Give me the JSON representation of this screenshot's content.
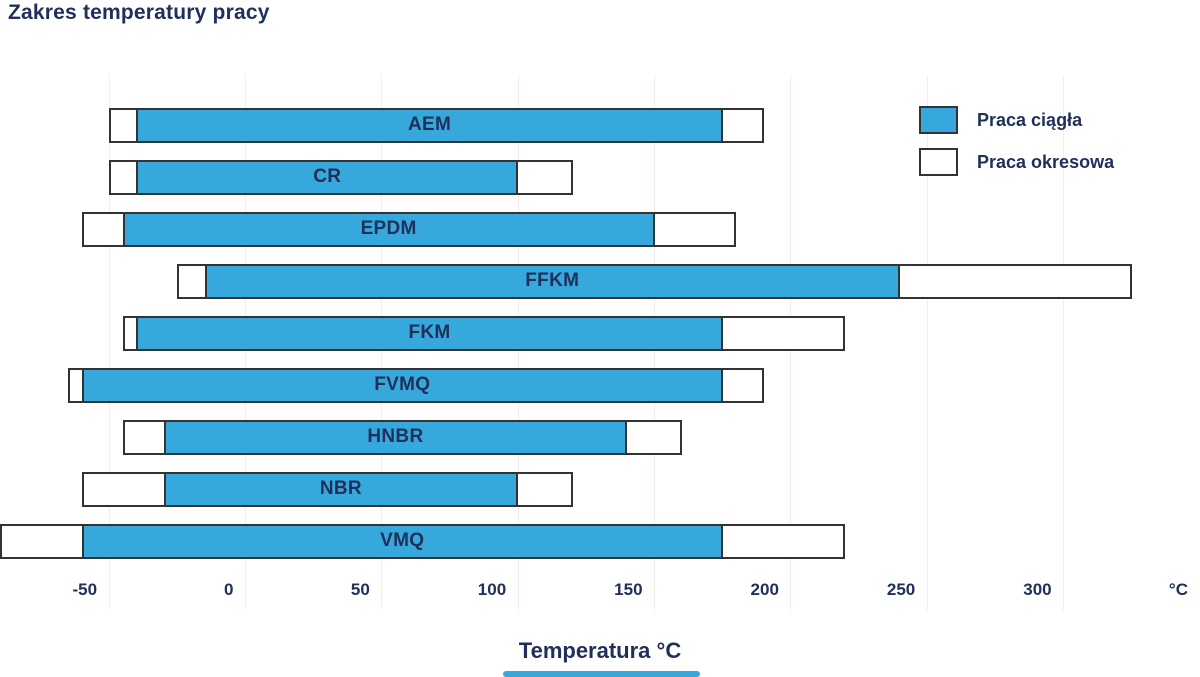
{
  "chart_data": {
    "type": "bar",
    "orientation": "horizontal-range",
    "title": "Zakres temperatury pracy",
    "xlabel": "Temperatura °C",
    "axis": {
      "min": -90,
      "max": 350,
      "tick_step": 50,
      "tick_values": [
        -50,
        0,
        50,
        100,
        150,
        200,
        250,
        300
      ],
      "unit_label": "°C",
      "unit_tick_value": 350,
      "grid": true
    },
    "legend": [
      {
        "key": "continuous",
        "label": "Praca ciągła",
        "color": "#36a8dc"
      },
      {
        "key": "intermittent",
        "label": "Praca okresowa",
        "color": "#ffffff"
      }
    ],
    "materials": [
      {
        "name": "AEM",
        "continuous": [
          -40,
          175
        ],
        "intermittent": [
          -50,
          190
        ]
      },
      {
        "name": "CR",
        "continuous": [
          -40,
          100
        ],
        "intermittent": [
          -50,
          120
        ]
      },
      {
        "name": "EPDM",
        "continuous": [
          -45,
          150
        ],
        "intermittent": [
          -60,
          180
        ]
      },
      {
        "name": "FFKM",
        "continuous": [
          -15,
          240
        ],
        "intermittent": [
          -25,
          325
        ]
      },
      {
        "name": "FKM",
        "continuous": [
          -40,
          175
        ],
        "intermittent": [
          -45,
          220
        ]
      },
      {
        "name": "FVMQ",
        "continuous": [
          -60,
          175
        ],
        "intermittent": [
          -65,
          190
        ]
      },
      {
        "name": "HNBR",
        "continuous": [
          -30,
          140
        ],
        "intermittent": [
          -45,
          160
        ]
      },
      {
        "name": "NBR",
        "continuous": [
          -30,
          100
        ],
        "intermittent": [
          -60,
          120
        ]
      },
      {
        "name": "VMQ",
        "continuous": [
          -60,
          175
        ],
        "intermittent": [
          -90,
          220
        ]
      }
    ]
  },
  "colors": {
    "bar_blue": "#36a8dc",
    "bar_border": "#333333",
    "text_navy": "#21305a",
    "gridline": "#f1eee8",
    "background": "#ffffff"
  }
}
